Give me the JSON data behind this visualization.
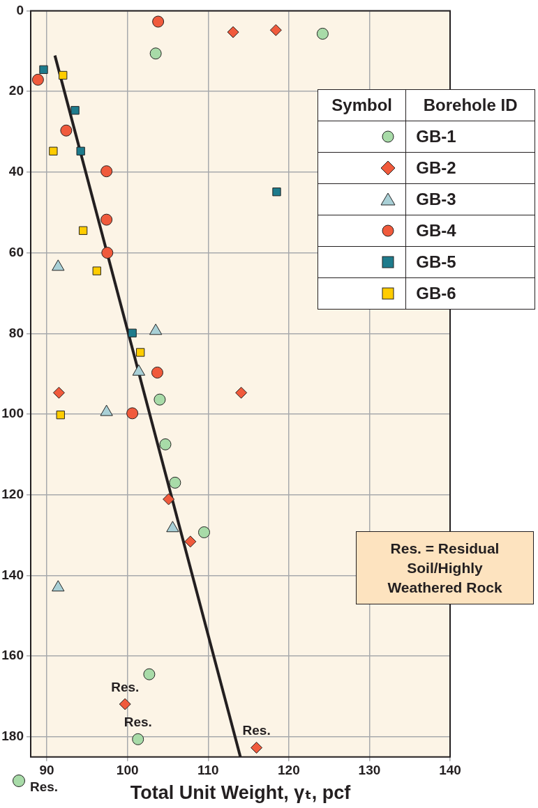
{
  "chart_data": {
    "type": "scatter",
    "xlabel": "Total Unit Weight, γₜ, pcf",
    "xlim": [
      88,
      140
    ],
    "xticks": [
      90,
      100,
      110,
      120,
      130,
      140
    ],
    "ylim": [
      185,
      0
    ],
    "yticks": [
      0,
      20,
      40,
      60,
      80,
      100,
      120,
      140,
      160,
      180
    ],
    "grid": true,
    "legend": "top right",
    "legend_title": "Borehole ID",
    "series": [
      {
        "name": "GB-1",
        "color": "#a8dba8",
        "marker": "circle",
        "x": [
          124.2,
          103.5,
          104.0,
          104.7,
          105.9,
          109.5,
          102.7,
          101.3
        ],
        "values": [
          5.7,
          10.6,
          96.4,
          107.5,
          117,
          129.3,
          164.5,
          180.6
        ]
      },
      {
        "name": "GB-2",
        "color": "#f05a3c",
        "marker": "diamond",
        "x": [
          113.1,
          118.4,
          91.5,
          114.1,
          105.1,
          107.8,
          99.7,
          116.0
        ],
        "values": [
          5.3,
          4.8,
          94.7,
          94.7,
          121.1,
          131.6,
          171.9,
          182.7
        ]
      },
      {
        "name": "GB-3",
        "color": "#a9d0d6",
        "marker": "triangle",
        "x": [
          91.4,
          103.5,
          101.4,
          97.4,
          105.6,
          91.4
        ],
        "values": [
          63.5,
          79.4,
          89.5,
          99.5,
          128.3,
          143
        ]
      },
      {
        "name": "GB-4",
        "color": "#f05a3c",
        "marker": "circle",
        "x": [
          103.8,
          88.9,
          92.4,
          97.4,
          97.4,
          97.5,
          103.7,
          100.6
        ],
        "values": [
          2.7,
          17.1,
          29.7,
          39.8,
          51.8,
          60,
          89.7,
          99.8
        ]
      },
      {
        "name": "GB-5",
        "color": "#1e7b8c",
        "marker": "square",
        "x": [
          89.6,
          93.5,
          94.2,
          118.5,
          100.6
        ],
        "values": [
          14.6,
          24.7,
          34.8,
          44.9,
          79.9
        ]
      },
      {
        "name": "GB-6",
        "color": "#ffcc00",
        "marker": "square",
        "x": [
          92.0,
          90.8,
          94.5,
          96.2,
          101.6,
          91.7
        ],
        "values": [
          16,
          34.8,
          54.5,
          64.5,
          84.7,
          100.2
        ]
      },
      {
        "type": "line",
        "color": "#231f20",
        "marker": "none",
        "line_style": "solid",
        "x": [
          91.0,
          114.0
        ],
        "values": [
          11.1,
          185
        ]
      }
    ],
    "annotations": [
      "Symbol",
      "Res. = Residual Soil/Highly Weathered Rock",
      "Res.",
      {
        "text": "Res.",
        "x": 99.7,
        "y": 171.9
      },
      {
        "text": "Res.",
        "x": 101.3,
        "y": 180.6
      },
      {
        "text": "Res.",
        "x": 116.0,
        "y": 182.7
      }
    ]
  }
}
